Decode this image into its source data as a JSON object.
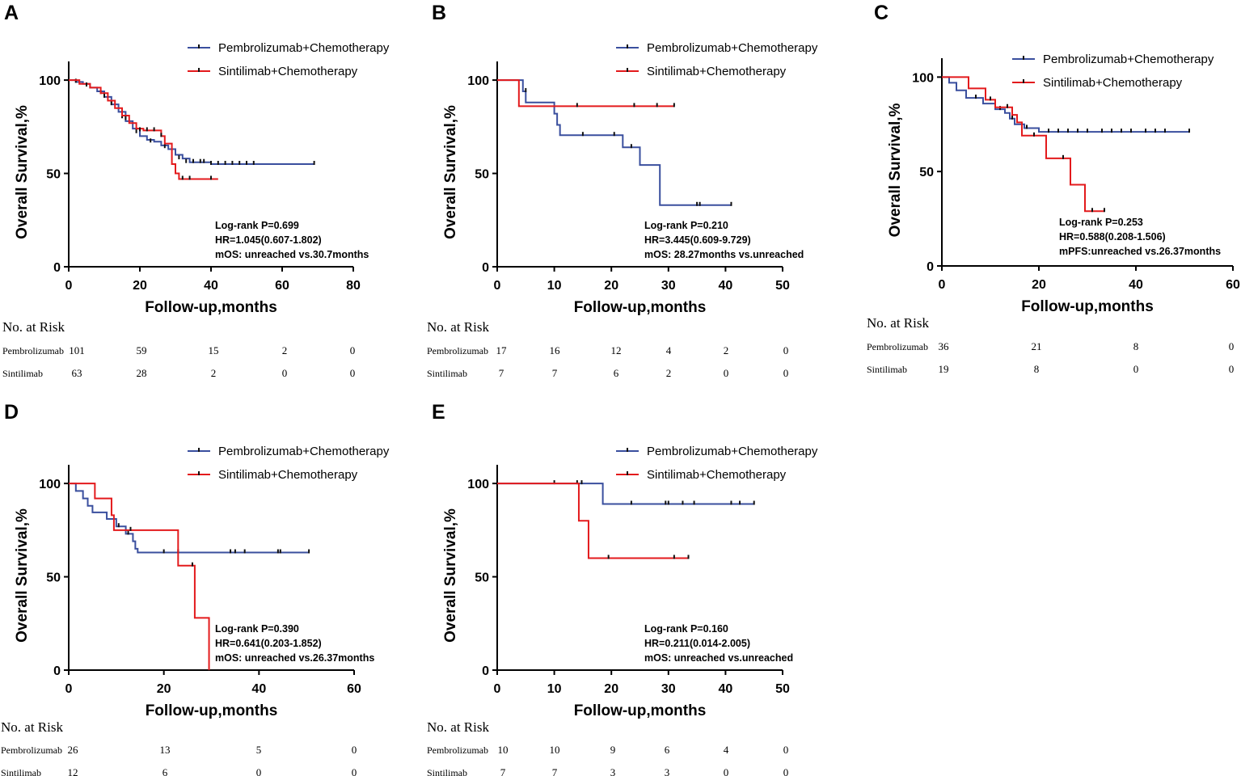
{
  "colors": {
    "pembrolizumab": "#3a4f9e",
    "sintilimab": "#e31a1c",
    "axis": "#000000"
  },
  "chart_data": [
    {
      "id": "A",
      "type": "line",
      "panel_letter": "A",
      "ylabel": "Overall Survival,%",
      "xlabel": "Follow-up,months",
      "xlim": [
        0,
        80
      ],
      "ylim": [
        0,
        110
      ],
      "xticks": [
        0,
        20,
        40,
        60,
        80
      ],
      "yticks": [
        0,
        50,
        100
      ],
      "legend": [
        "Pembrolizumab+Chemotherapy",
        "Sintilimab+Chemotherapy"
      ],
      "stats": [
        "Log-rank P=0.699",
        "HR=1.045(0.607-1.802)",
        "mOS: unreached vs.30.7months"
      ],
      "series": [
        {
          "name": "Pembrolizumab+Chemotherapy",
          "color_key": "pembrolizumab",
          "steps": [
            [
              0,
              100
            ],
            [
              2,
              99
            ],
            [
              4,
              98
            ],
            [
              6,
              96
            ],
            [
              8,
              94
            ],
            [
              10,
              91
            ],
            [
              12,
              87
            ],
            [
              14,
              83
            ],
            [
              16,
              78
            ],
            [
              18,
              74
            ],
            [
              20,
              70
            ],
            [
              22,
              68
            ],
            [
              24,
              67
            ],
            [
              26,
              65
            ],
            [
              28,
              63
            ],
            [
              30,
              60
            ],
            [
              32,
              58
            ],
            [
              34,
              56
            ],
            [
              40,
              55
            ],
            [
              69,
              55
            ]
          ],
          "censors": [
            [
              2,
              99
            ],
            [
              5,
              97
            ],
            [
              9,
              93
            ],
            [
              12,
              87
            ],
            [
              15,
              80
            ],
            [
              19,
              72
            ],
            [
              23,
              67
            ],
            [
              27,
              64
            ],
            [
              31,
              58
            ],
            [
              33,
              56
            ],
            [
              35,
              56
            ],
            [
              37,
              56
            ],
            [
              38,
              56
            ],
            [
              40,
              55
            ],
            [
              42,
              55
            ],
            [
              44,
              55
            ],
            [
              46,
              55
            ],
            [
              48,
              55
            ],
            [
              50,
              55
            ],
            [
              52,
              55
            ],
            [
              69,
              55
            ]
          ]
        },
        {
          "name": "Sintilimab+Chemotherapy",
          "color_key": "sintilimab",
          "steps": [
            [
              0,
              100
            ],
            [
              3,
              98
            ],
            [
              6,
              96
            ],
            [
              9,
              93
            ],
            [
              11,
              89
            ],
            [
              13,
              85
            ],
            [
              15,
              81
            ],
            [
              17,
              77
            ],
            [
              19,
              74
            ],
            [
              21,
              73
            ],
            [
              26,
              70
            ],
            [
              27,
              66
            ],
            [
              29,
              55
            ],
            [
              30,
              50
            ],
            [
              31,
              47
            ],
            [
              42,
              47
            ]
          ],
          "censors": [
            [
              5,
              97
            ],
            [
              10,
              91
            ],
            [
              16,
              79
            ],
            [
              20,
              73
            ],
            [
              22,
              73
            ],
            [
              24,
              73
            ],
            [
              26,
              70
            ],
            [
              32,
              47
            ],
            [
              34,
              47
            ],
            [
              40,
              47
            ]
          ]
        }
      ],
      "risk_table": {
        "title": "No. at Risk",
        "rows": [
          {
            "label": "Pembrolizumab",
            "values": [
              "101",
              "59",
              "15",
              "2",
              "0"
            ]
          },
          {
            "label": "Sintilimab",
            "values": [
              "63",
              "28",
              "2",
              "0",
              "0"
            ]
          }
        ]
      }
    },
    {
      "id": "B",
      "type": "line",
      "panel_letter": "B",
      "ylabel": "Overall Survival,%",
      "xlabel": "Follow-up,months",
      "xlim": [
        0,
        50
      ],
      "ylim": [
        0,
        110
      ],
      "xticks": [
        0,
        10,
        20,
        30,
        40,
        50
      ],
      "yticks": [
        0,
        50,
        100
      ],
      "legend": [
        "Pembrolizumab+Chemotherapy",
        "Sintilimab+Chemotherapy"
      ],
      "stats": [
        "Log-rank P=0.210",
        "HR=3.445(0.609-9.729)",
        "mOS: 28.27months vs.unreached"
      ],
      "series": [
        {
          "name": "Pembrolizumab+Chemotherapy",
          "color_key": "pembrolizumab",
          "steps": [
            [
              0,
              100
            ],
            [
              4.5,
              94
            ],
            [
              5,
              88
            ],
            [
              10,
              82
            ],
            [
              10.5,
              76
            ],
            [
              11,
              70.5
            ],
            [
              22,
              64
            ],
            [
              25,
              54.5
            ],
            [
              28.5,
              33
            ],
            [
              41,
              33
            ]
          ],
          "censors": [
            [
              5,
              94
            ],
            [
              15,
              70.5
            ],
            [
              20.5,
              70.5
            ],
            [
              23.5,
              64
            ],
            [
              35,
              33
            ],
            [
              35.5,
              33
            ],
            [
              41,
              33
            ]
          ]
        },
        {
          "name": "Sintilimab+Chemotherapy",
          "color_key": "sintilimab",
          "steps": [
            [
              0,
              100
            ],
            [
              3.8,
              86
            ],
            [
              31,
              86
            ]
          ],
          "censors": [
            [
              14,
              86
            ],
            [
              24,
              86
            ],
            [
              28,
              86
            ],
            [
              31,
              86
            ]
          ]
        }
      ],
      "risk_table": {
        "title": "No. at Risk",
        "rows": [
          {
            "label": "Pembrolizumab",
            "values": [
              "17",
              "16",
              "12",
              "4",
              "2",
              "0"
            ]
          },
          {
            "label": "Sintilimab",
            "values": [
              "7",
              "7",
              "6",
              "2",
              "0",
              "0"
            ]
          }
        ]
      }
    },
    {
      "id": "C",
      "type": "line",
      "panel_letter": "C",
      "ylabel": "Overall Survival,%",
      "xlabel": "Follow-up,months",
      "xlim": [
        0,
        60
      ],
      "ylim": [
        0,
        110
      ],
      "xticks": [
        0,
        20,
        40,
        60
      ],
      "yticks": [
        0,
        50,
        100
      ],
      "legend": [
        "Pembrolizumab+Chemotherapy",
        "Sintilimab+Chemotherapy"
      ],
      "stats": [
        "Log-rank P=0.253",
        "HR=0.588(0.208-1.506)",
        "mPFS:unreached vs.26.37months"
      ],
      "series": [
        {
          "name": "Pembrolizumab+Chemotherapy",
          "color_key": "pembrolizumab",
          "steps": [
            [
              0,
              100
            ],
            [
              1.5,
              97
            ],
            [
              3,
              93
            ],
            [
              5,
              89
            ],
            [
              8.5,
              86
            ],
            [
              11,
              83
            ],
            [
              13,
              81
            ],
            [
              14,
              78
            ],
            [
              15,
              75
            ],
            [
              17,
              73
            ],
            [
              20,
              71
            ],
            [
              51,
              71
            ]
          ],
          "censors": [
            [
              7,
              89
            ],
            [
              12,
              83
            ],
            [
              14.5,
              78
            ],
            [
              17.5,
              73
            ],
            [
              22,
              71
            ],
            [
              24,
              71
            ],
            [
              26,
              71
            ],
            [
              28,
              71
            ],
            [
              30,
              71
            ],
            [
              33,
              71
            ],
            [
              35,
              71
            ],
            [
              37,
              71
            ],
            [
              39,
              71
            ],
            [
              42,
              71
            ],
            [
              44,
              71
            ],
            [
              46,
              71
            ],
            [
              51,
              71
            ]
          ]
        },
        {
          "name": "Sintilimab+Chemotherapy",
          "color_key": "sintilimab",
          "steps": [
            [
              0,
              100
            ],
            [
              5.5,
              94
            ],
            [
              9,
              88
            ],
            [
              11,
              84
            ],
            [
              14.5,
              80
            ],
            [
              15.5,
              76
            ],
            [
              16.5,
              69
            ],
            [
              21,
              69
            ],
            [
              21.5,
              57
            ],
            [
              26.5,
              43
            ],
            [
              29.5,
              29
            ],
            [
              33.5,
              29
            ]
          ],
          "censors": [
            [
              10,
              88
            ],
            [
              13.5,
              84
            ],
            [
              19,
              69
            ],
            [
              25,
              57
            ],
            [
              31,
              29
            ],
            [
              33.5,
              29
            ]
          ]
        }
      ],
      "risk_table": {
        "title": "No. at Risk",
        "rows": [
          {
            "label": "Pembrolizumab",
            "values": [
              "36",
              "21",
              "8",
              "0"
            ]
          },
          {
            "label": "Sintilimab",
            "values": [
              "19",
              "8",
              "0",
              "0"
            ]
          }
        ]
      }
    },
    {
      "id": "D",
      "type": "line",
      "panel_letter": "D",
      "ylabel": "Overall Survival,%",
      "xlabel": "Follow-up,months",
      "xlim": [
        0,
        60
      ],
      "ylim": [
        0,
        110
      ],
      "xticks": [
        0,
        20,
        40,
        60
      ],
      "yticks": [
        0,
        50,
        100
      ],
      "legend": [
        "Pembrolizumab+Chemotherapy",
        "Sintilimab+Chemotherapy"
      ],
      "stats": [
        "Log-rank P=0.390",
        "HR=0.641(0.203-1.852)",
        "mOS: unreached vs.26.37months"
      ],
      "series": [
        {
          "name": "Pembrolizumab+Chemotherapy",
          "color_key": "pembrolizumab",
          "steps": [
            [
              0,
              100
            ],
            [
              1.5,
              96
            ],
            [
              3,
              92
            ],
            [
              4,
              88
            ],
            [
              5,
              84.5
            ],
            [
              8,
              81
            ],
            [
              10,
              77
            ],
            [
              12,
              73
            ],
            [
              13.5,
              69
            ],
            [
              14,
              65
            ],
            [
              14.5,
              63
            ],
            [
              50.5,
              63
            ]
          ],
          "censors": [
            [
              10.5,
              77
            ],
            [
              12.5,
              73
            ],
            [
              20,
              63
            ],
            [
              23,
              63
            ],
            [
              34,
              63
            ],
            [
              35,
              63
            ],
            [
              37,
              63
            ],
            [
              44,
              63
            ],
            [
              44.5,
              63
            ],
            [
              50.5,
              63
            ]
          ]
        },
        {
          "name": "Sintilimab+Chemotherapy",
          "color_key": "sintilimab",
          "steps": [
            [
              0,
              100
            ],
            [
              5.5,
              92
            ],
            [
              9,
              83
            ],
            [
              9.5,
              75
            ],
            [
              23,
              56
            ],
            [
              26.5,
              28
            ],
            [
              29.5,
              0
            ]
          ],
          "censors": [
            [
              13,
              75
            ],
            [
              26,
              56
            ]
          ]
        }
      ],
      "risk_table": {
        "title": "No. at Risk",
        "rows": [
          {
            "label": "Pembrolizumab",
            "values": [
              "26",
              "13",
              "5",
              "0"
            ]
          },
          {
            "label": "Sintilimab",
            "values": [
              "12",
              "6",
              "0",
              "0"
            ]
          }
        ]
      }
    },
    {
      "id": "E",
      "type": "line",
      "panel_letter": "E",
      "ylabel": "Overall Survival,%",
      "xlabel": "Follow-up,months",
      "xlim": [
        0,
        50
      ],
      "ylim": [
        0,
        110
      ],
      "xticks": [
        0,
        10,
        20,
        30,
        40,
        50
      ],
      "yticks": [
        0,
        50,
        100
      ],
      "legend": [
        "Pembrolizumab+Chemotherapy",
        "Sintilimab+Chemotherapy"
      ],
      "stats": [
        "Log-rank P=0.160",
        "HR=0.211(0.014-2.005)",
        "mOS: unreached vs.unreached"
      ],
      "series": [
        {
          "name": "Pembrolizumab+Chemotherapy",
          "color_key": "pembrolizumab",
          "steps": [
            [
              0,
              100
            ],
            [
              18.5,
              89
            ],
            [
              45,
              89
            ]
          ],
          "censors": [
            [
              10,
              100
            ],
            [
              14,
              100
            ],
            [
              23.5,
              89
            ],
            [
              29.5,
              89
            ],
            [
              30,
              89
            ],
            [
              32.5,
              89
            ],
            [
              34.5,
              89
            ],
            [
              41,
              89
            ],
            [
              42.5,
              89
            ],
            [
              45,
              89
            ]
          ]
        },
        {
          "name": "Sintilimab+Chemotherapy",
          "color_key": "sintilimab",
          "steps": [
            [
              0,
              100
            ],
            [
              14.3,
              80
            ],
            [
              16,
              60
            ],
            [
              33.5,
              60
            ]
          ],
          "censors": [
            [
              14.8,
              100
            ],
            [
              19.5,
              60
            ],
            [
              31,
              60
            ],
            [
              33.5,
              60
            ]
          ]
        }
      ],
      "risk_table": {
        "title": "No. at Risk",
        "rows": [
          {
            "label": "Pembrolizumab",
            "values": [
              "10",
              "10",
              "9",
              "6",
              "4",
              "0"
            ]
          },
          {
            "label": "Sintilimab",
            "values": [
              "7",
              "7",
              "3",
              "3",
              "0",
              "0"
            ]
          }
        ]
      }
    }
  ]
}
